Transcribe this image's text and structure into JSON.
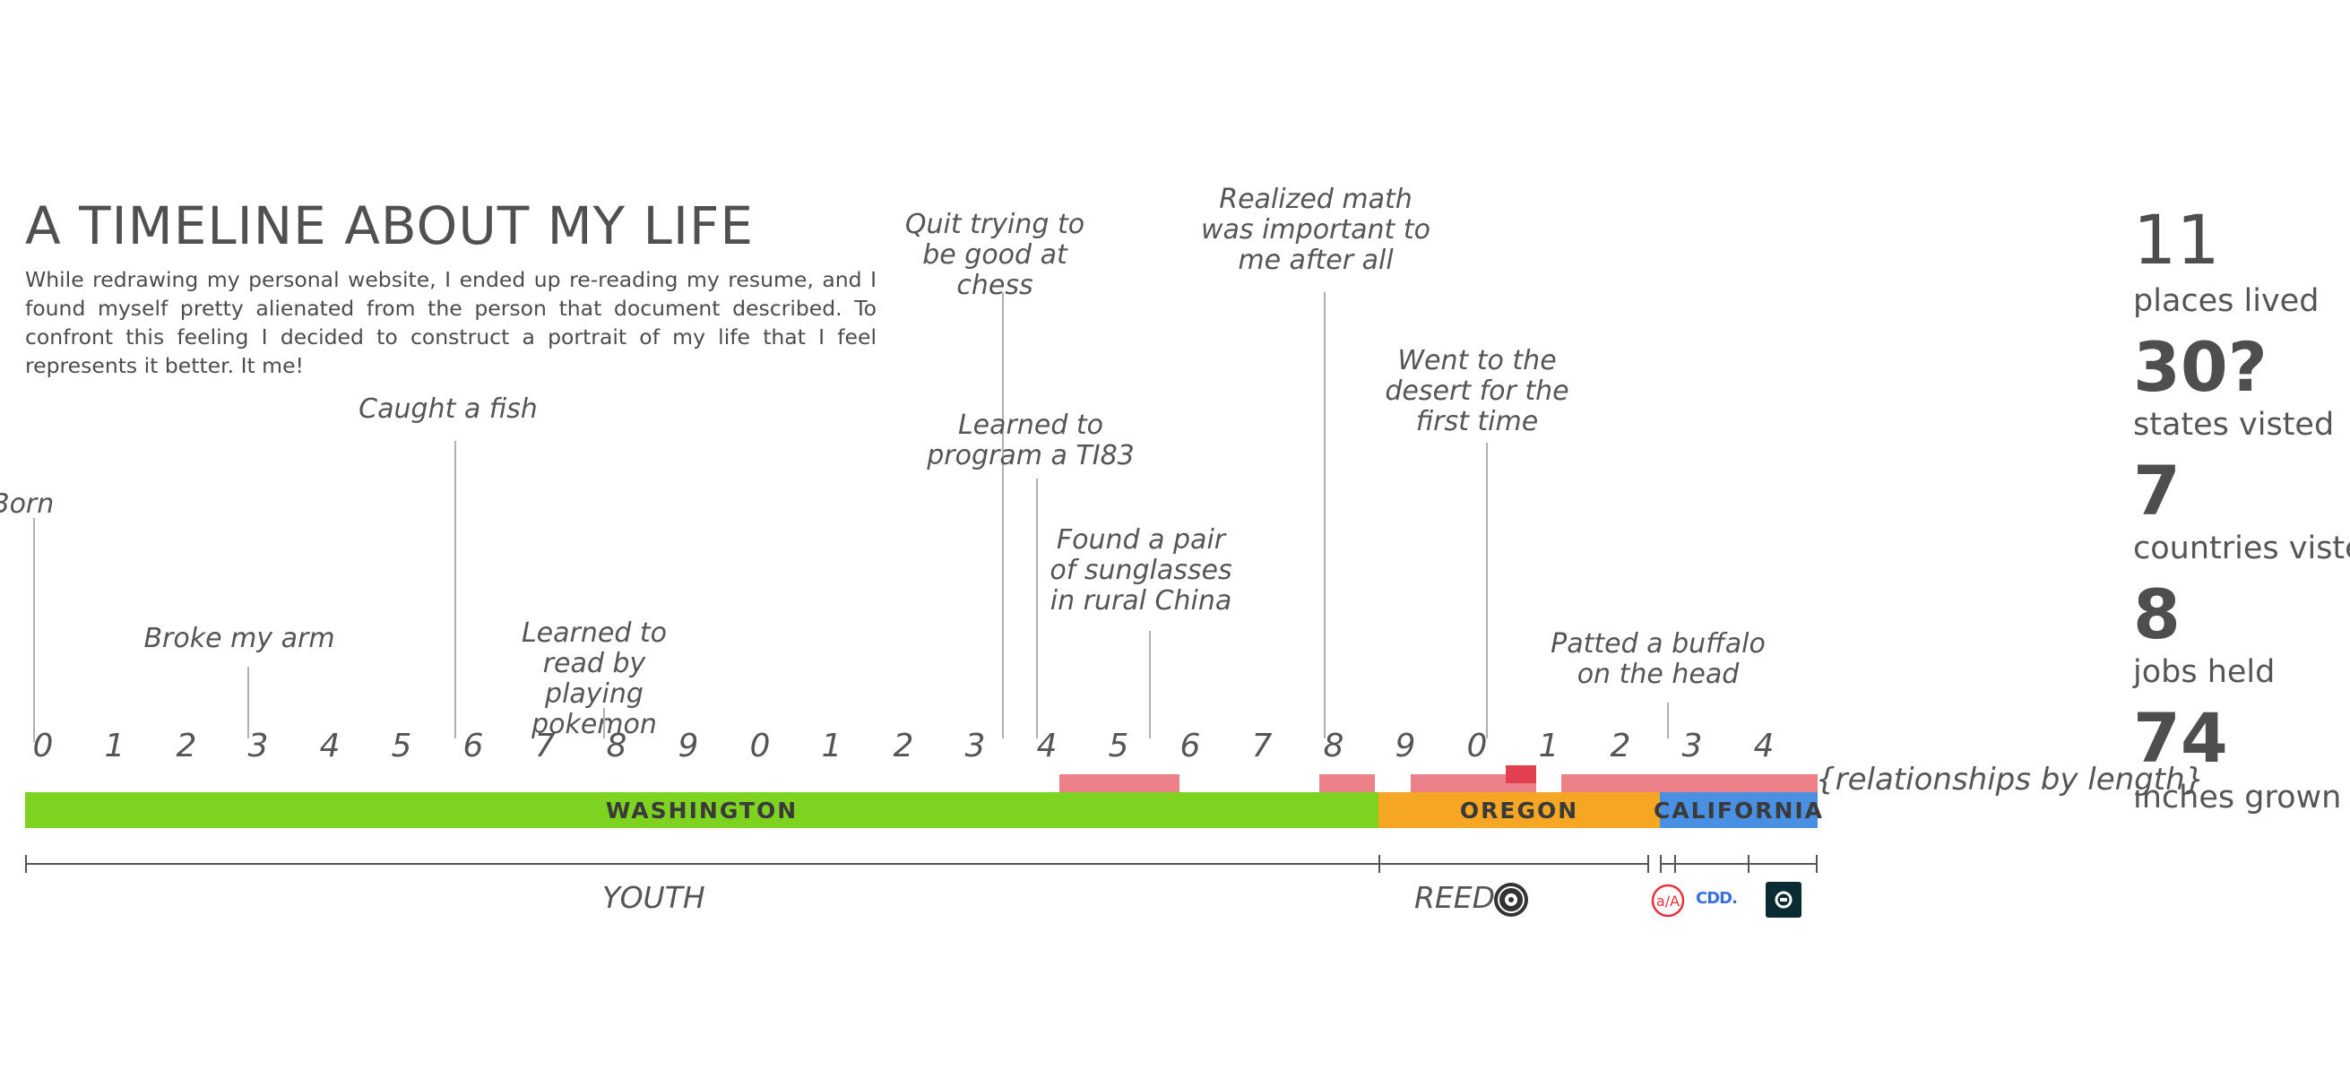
{
  "header": {
    "title": "A TIMELINE ABOUT MY LIFE",
    "intro": "While redrawing my personal website, I ended up re-reading my resume, and I found myself pretty alienated from the person that document described. To confront this feeling I decided to construct a portrait of my life that I feel represents it better. It me!"
  },
  "annotations": [
    {
      "text": "Born"
    },
    {
      "text": "Caught a fish"
    },
    {
      "text": "Broke my arm"
    },
    {
      "text": "Learned to read by playing pokemon"
    },
    {
      "text": "Quit trying to be good at chess"
    },
    {
      "text": "Learned to program a TI83"
    },
    {
      "text": "Found a pair of sunglasses in rural China"
    },
    {
      "text": "Realized math was important to me after all"
    },
    {
      "text": "Went to the desert for the first time"
    },
    {
      "text": "Patted a buffalo on the head"
    }
  ],
  "ticks": [
    "0",
    "1",
    "2",
    "3",
    "4",
    "5",
    "6",
    "7",
    "8",
    "9",
    "0",
    "1",
    "2",
    "3",
    "4",
    "5",
    "6",
    "7",
    "8",
    "9",
    "0",
    "1",
    "2",
    "3",
    "4"
  ],
  "places": [
    {
      "label": "WASHINGTON",
      "color": "#7ed321"
    },
    {
      "label": "OREGON",
      "color": "#f5a623"
    },
    {
      "label": "CALIFORNIA",
      "color": "#4a90e2"
    }
  ],
  "relationship_color": "#ec8089",
  "relationships_label": "{relationships by length}",
  "periods": [
    {
      "label": "YOUTH"
    },
    {
      "label": "REED",
      "icon": "reed-seal-icon"
    },
    {
      "icon": "aa-logo-icon"
    },
    {
      "label": "CDD.",
      "icon": "cdd-logo-icon"
    },
    {
      "icon": "uber-logo-icon"
    }
  ],
  "stats": [
    {
      "value": "11",
      "label": "places lived"
    },
    {
      "value": "30?",
      "label": "states visted"
    },
    {
      "value": "7",
      "label": "countries visted"
    },
    {
      "value": "8",
      "label": "jobs held"
    },
    {
      "value": "74",
      "label": "inches grown"
    }
  ]
}
